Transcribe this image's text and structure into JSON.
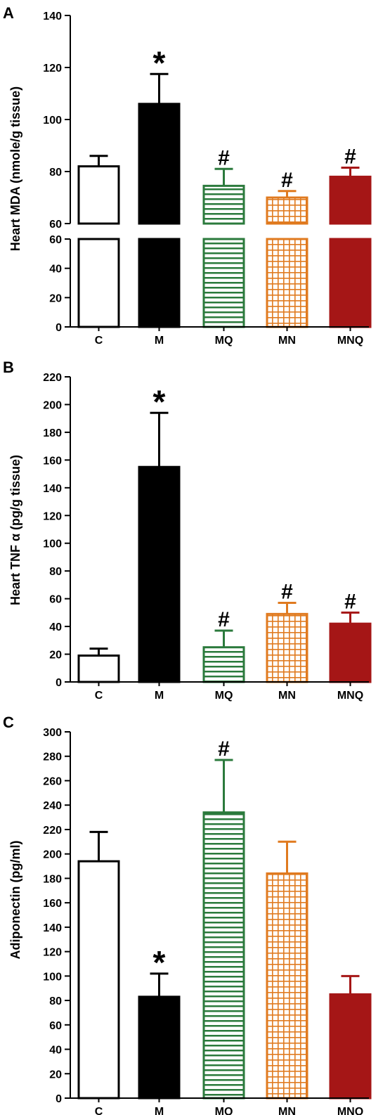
{
  "colors": {
    "C": "#000000",
    "M": "#000000",
    "MQ": "#2b7a3c",
    "MN": "#e07a1f",
    "MNQ": "#a51616"
  },
  "patterns": {
    "C": "empty",
    "M": "solid",
    "MQ": "horizontal-lines",
    "MN": "grid",
    "MNQ": "solid"
  },
  "chart_data": [
    {
      "panel": "A",
      "type": "bar",
      "ylabel": "Heart MDA (nmole/g tissue)",
      "categories": [
        "C",
        "M",
        "MQ",
        "MN",
        "MNQ"
      ],
      "values": [
        82,
        106,
        74.5,
        70,
        78
      ],
      "errors": [
        4,
        11.5,
        6.5,
        2.5,
        3.5
      ],
      "annotations": [
        "",
        "*",
        "#",
        "#",
        "#"
      ],
      "axis_break": {
        "lower_range": [
          0,
          60
        ],
        "upper_range": [
          60,
          140
        ]
      },
      "lower_ticks": [
        0,
        20,
        40,
        60
      ],
      "upper_ticks": [
        60,
        80,
        100,
        120,
        140
      ]
    },
    {
      "panel": "B",
      "type": "bar",
      "ylabel": "Heart TNF α (pg/g tissue)",
      "categories": [
        "C",
        "M",
        "MQ",
        "MN",
        "MNQ"
      ],
      "values": [
        19,
        155,
        25,
        49,
        42
      ],
      "errors": [
        5,
        39,
        12,
        8,
        8
      ],
      "annotations": [
        "",
        "*",
        "#",
        "#",
        "#"
      ],
      "ylim": [
        0,
        220
      ],
      "ticks": [
        0,
        20,
        40,
        60,
        80,
        100,
        120,
        140,
        160,
        180,
        200,
        220
      ]
    },
    {
      "panel": "C",
      "type": "bar",
      "ylabel": "Adiponectin (pg/ml)",
      "categories": [
        "C",
        "M",
        "MQ",
        "MN",
        "MNQ"
      ],
      "values": [
        194,
        83,
        234,
        184,
        85
      ],
      "errors": [
        24,
        19,
        43,
        26,
        15
      ],
      "annotations": [
        "",
        "*",
        "#",
        "",
        ""
      ],
      "ylim": [
        0,
        300
      ],
      "ticks": [
        0,
        20,
        40,
        60,
        80,
        100,
        120,
        140,
        160,
        180,
        200,
        220,
        240,
        260,
        280,
        300
      ]
    }
  ]
}
